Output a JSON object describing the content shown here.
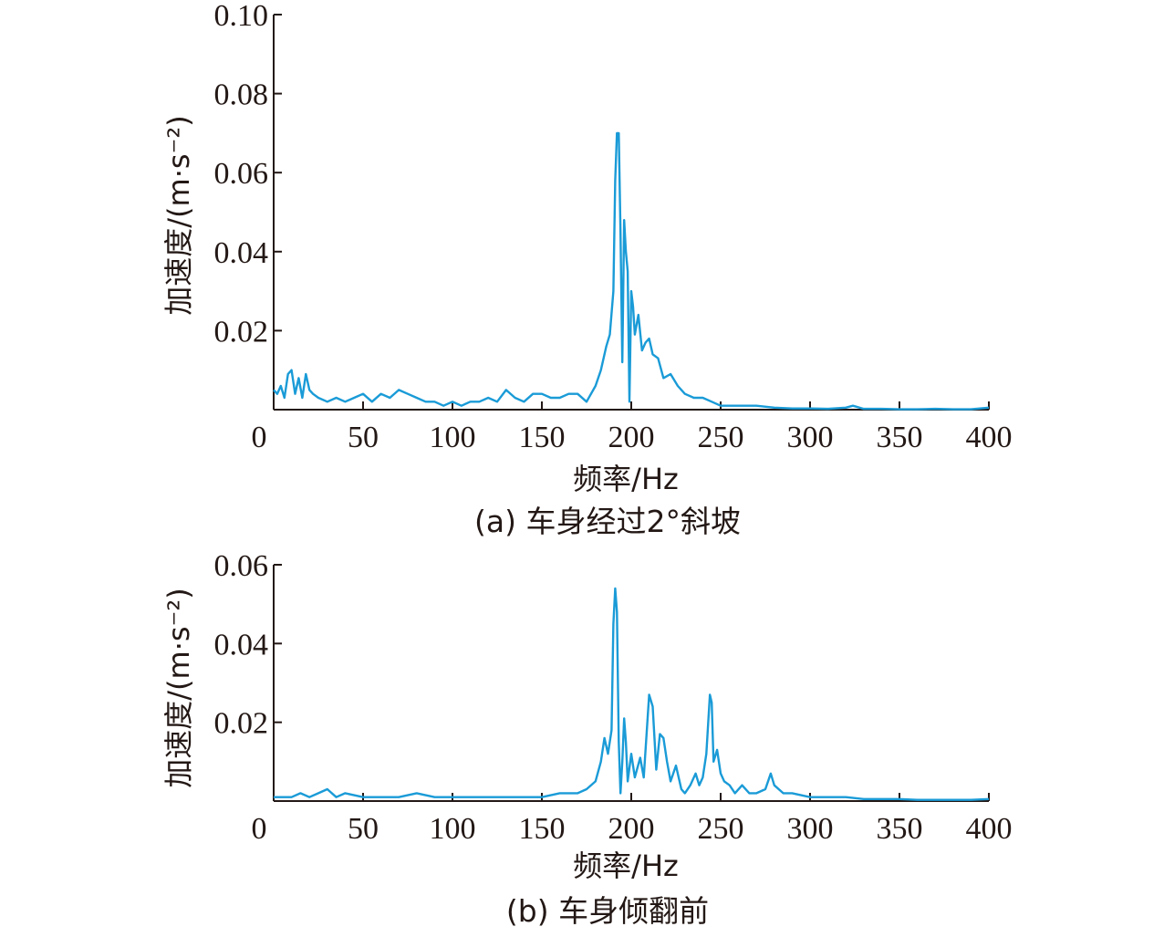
{
  "chart_data": [
    {
      "type": "line",
      "caption": "(a) 车身经过2°斜坡",
      "xlabel": "频率/Hz",
      "ylabel": "加速度/(m·s⁻²)",
      "xlim": [
        0,
        400
      ],
      "ylim": [
        0,
        0.1
      ],
      "xticks": [
        "0",
        "50",
        "100",
        "150",
        "200",
        "250",
        "300",
        "350",
        "400"
      ],
      "yticks": [
        "0.02",
        "0.04",
        "0.06",
        "0.08",
        "0.10"
      ],
      "series": [
        {
          "color": "#1a9bd7",
          "x": [
            0,
            2,
            4,
            6,
            8,
            10,
            12,
            14,
            16,
            18,
            20,
            22,
            25,
            30,
            35,
            40,
            45,
            50,
            55,
            60,
            65,
            70,
            75,
            80,
            85,
            90,
            95,
            100,
            105,
            110,
            115,
            120,
            125,
            130,
            135,
            140,
            145,
            150,
            155,
            160,
            165,
            170,
            175,
            180,
            183,
            186,
            188,
            190,
            191,
            192,
            193,
            194,
            195,
            196,
            197,
            198,
            199,
            200,
            201,
            202,
            204,
            206,
            208,
            210,
            212,
            215,
            218,
            222,
            226,
            230,
            235,
            240,
            245,
            250,
            255,
            260,
            270,
            280,
            290,
            300,
            310,
            320,
            324,
            330,
            340,
            350,
            360,
            370,
            380,
            390,
            400
          ],
          "y": [
            0.005,
            0.004,
            0.006,
            0.003,
            0.009,
            0.01,
            0.004,
            0.008,
            0.003,
            0.009,
            0.005,
            0.004,
            0.003,
            0.002,
            0.003,
            0.002,
            0.003,
            0.004,
            0.002,
            0.004,
            0.003,
            0.005,
            0.004,
            0.003,
            0.002,
            0.002,
            0.001,
            0.002,
            0.001,
            0.002,
            0.002,
            0.003,
            0.002,
            0.005,
            0.003,
            0.002,
            0.004,
            0.004,
            0.003,
            0.003,
            0.004,
            0.004,
            0.002,
            0.006,
            0.01,
            0.016,
            0.019,
            0.03,
            0.058,
            0.07,
            0.07,
            0.045,
            0.012,
            0.048,
            0.04,
            0.035,
            0.002,
            0.03,
            0.026,
            0.019,
            0.024,
            0.015,
            0.017,
            0.018,
            0.014,
            0.013,
            0.008,
            0.009,
            0.006,
            0.004,
            0.003,
            0.003,
            0.002,
            0.001,
            0.001,
            0.001,
            0.001,
            0.0005,
            0.0003,
            0.0003,
            0.0002,
            0.0005,
            0.001,
            0.0002,
            0.0002,
            0.0001,
            0.0001,
            0.0002,
            0.0001,
            0.0001,
            0.0005
          ]
        }
      ]
    },
    {
      "type": "line",
      "caption": "(b) 车身倾翻前",
      "xlabel": "频率/Hz",
      "ylabel": "加速度/(m·s⁻²)",
      "xlim": [
        0,
        400
      ],
      "ylim": [
        0,
        0.06
      ],
      "xticks": [
        "0",
        "50",
        "100",
        "150",
        "200",
        "250",
        "300",
        "350",
        "400"
      ],
      "yticks": [
        "0.02",
        "0.04",
        "0.06"
      ],
      "series": [
        {
          "color": "#1a9bd7",
          "x": [
            0,
            5,
            10,
            15,
            20,
            25,
            30,
            35,
            40,
            50,
            60,
            70,
            80,
            90,
            100,
            110,
            120,
            130,
            140,
            150,
            160,
            170,
            175,
            180,
            183,
            185,
            187,
            189,
            190,
            191,
            192,
            193,
            194,
            195,
            196,
            197,
            198,
            200,
            202,
            205,
            207,
            210,
            212,
            214,
            216,
            218,
            220,
            222,
            225,
            228,
            230,
            233,
            236,
            238,
            240,
            242,
            244,
            245,
            246,
            248,
            250,
            252,
            255,
            258,
            262,
            266,
            270,
            275,
            278,
            280,
            285,
            290,
            300,
            310,
            320,
            330,
            340,
            350,
            360,
            370,
            380,
            390,
            400
          ],
          "y": [
            0.001,
            0.001,
            0.001,
            0.002,
            0.001,
            0.002,
            0.003,
            0.001,
            0.002,
            0.001,
            0.001,
            0.001,
            0.002,
            0.001,
            0.001,
            0.001,
            0.001,
            0.001,
            0.001,
            0.001,
            0.002,
            0.002,
            0.003,
            0.005,
            0.01,
            0.016,
            0.012,
            0.018,
            0.045,
            0.054,
            0.048,
            0.015,
            0.002,
            0.01,
            0.021,
            0.015,
            0.005,
            0.012,
            0.006,
            0.011,
            0.006,
            0.027,
            0.024,
            0.008,
            0.017,
            0.016,
            0.01,
            0.005,
            0.009,
            0.003,
            0.002,
            0.004,
            0.007,
            0.004,
            0.006,
            0.012,
            0.027,
            0.025,
            0.01,
            0.013,
            0.007,
            0.005,
            0.004,
            0.002,
            0.004,
            0.002,
            0.002,
            0.003,
            0.007,
            0.004,
            0.002,
            0.002,
            0.001,
            0.001,
            0.001,
            0.0005,
            0.0005,
            0.0005,
            0.0003,
            0.0003,
            0.0003,
            0.0003,
            0.0005
          ]
        }
      ]
    }
  ]
}
